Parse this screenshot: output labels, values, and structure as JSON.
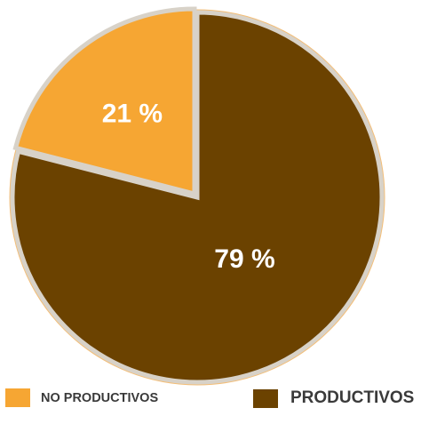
{
  "chart_data": {
    "type": "pie",
    "categories": [
      "NO PRODUCTIVOS",
      "PRODUCTIVOS"
    ],
    "values": [
      21,
      79
    ],
    "data_labels": [
      "21 %",
      "79 %"
    ],
    "colors": [
      "#F6A633",
      "#6B4200"
    ],
    "outline_color": "#F3BE78",
    "start_angle": "12 o'clock, counter-clockwise for NO PRODUCTIVOS",
    "exploded": "NO PRODUCTIVOS",
    "legend_placement": "bottom",
    "title": ""
  },
  "legend": [
    {
      "label": "NO PRODUCTIVOS",
      "color": "#F6A633"
    },
    {
      "label": "PRODUCTIVOS",
      "color": "#6B4200"
    }
  ]
}
